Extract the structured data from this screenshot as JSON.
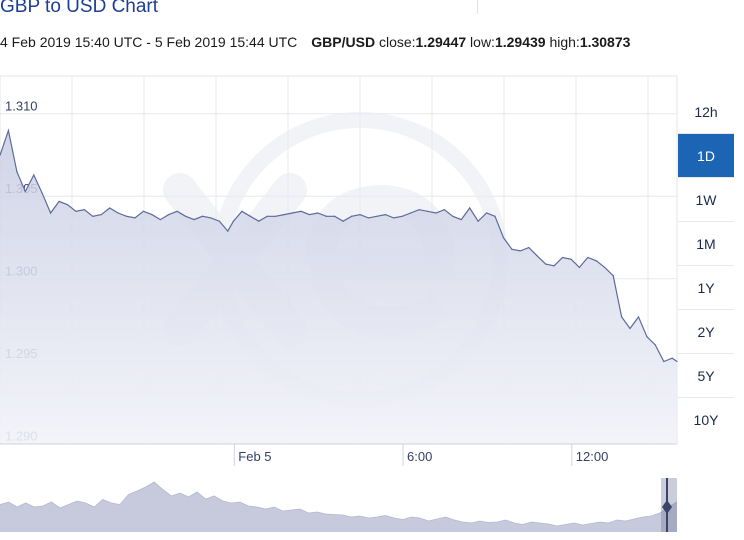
{
  "header": {
    "title": "GBP to USD Chart",
    "period": "4 Feb 2019 15:40 UTC - 5 Feb 2019 15:44 UTC",
    "pair": "GBP/USD",
    "close_label": "close:",
    "close_value": "1.29447",
    "low_label": "low:",
    "low_value": "1.29439",
    "high_label": "high:",
    "high_value": "1.30873"
  },
  "range_buttons": [
    {
      "label": "12h",
      "active": false
    },
    {
      "label": "1D",
      "active": true
    },
    {
      "label": "1W",
      "active": false
    },
    {
      "label": "1M",
      "active": false
    },
    {
      "label": "1Y",
      "active": false
    },
    {
      "label": "2Y",
      "active": false
    },
    {
      "label": "5Y",
      "active": false
    },
    {
      "label": "10Y",
      "active": false
    }
  ],
  "colors": {
    "line": "#5d6b9a",
    "area_top": "#c9cde3",
    "area_bottom": "#f2f3f9",
    "active_button": "#1c64b4",
    "title": "#1c3f94",
    "watermark": "#e8eaf2"
  },
  "chart_data": {
    "type": "area",
    "title": "GBP to USD Chart",
    "xlabel": "",
    "ylabel": "",
    "x_ticks": [
      {
        "label": "Feb 5",
        "x": 8.33
      },
      {
        "label": "6:00",
        "x": 14.33
      },
      {
        "label": "12:00",
        "x": 20.33
      }
    ],
    "y_ticks": [
      1.31,
      1.305,
      1.3,
      1.295,
      1.29
    ],
    "ylim": [
      1.2895,
      1.3118
    ],
    "xlim": [
      0,
      24.07
    ],
    "x_unit": "hours since 4 Feb 2019 15:40 UTC",
    "grid": true,
    "series": [
      {
        "name": "GBP/USD",
        "x": [
          0,
          0.3,
          0.6,
          0.9,
          1.2,
          1.5,
          1.8,
          2.1,
          2.4,
          2.7,
          3.0,
          3.3,
          3.6,
          3.9,
          4.2,
          4.5,
          4.8,
          5.1,
          5.4,
          5.7,
          6.0,
          6.3,
          6.6,
          6.9,
          7.2,
          7.5,
          7.8,
          8.1,
          8.3,
          8.6,
          8.9,
          9.2,
          9.5,
          9.8,
          10.1,
          10.4,
          10.7,
          11.0,
          11.3,
          11.6,
          11.9,
          12.2,
          12.5,
          12.8,
          13.1,
          13.4,
          13.7,
          14.0,
          14.3,
          14.6,
          14.9,
          15.2,
          15.5,
          15.8,
          16.1,
          16.4,
          16.7,
          17.0,
          17.3,
          17.6,
          17.9,
          18.2,
          18.5,
          18.8,
          19.1,
          19.4,
          19.7,
          20.0,
          20.3,
          20.6,
          20.9,
          21.2,
          21.5,
          21.8,
          22.1,
          22.4,
          22.7,
          23.0,
          23.3,
          23.6,
          23.9,
          24.07
        ],
        "values": [
          1.307,
          1.3085,
          1.306,
          1.3048,
          1.3058,
          1.3047,
          1.3035,
          1.3042,
          1.304,
          1.3036,
          1.3037,
          1.3033,
          1.3034,
          1.3038,
          1.3035,
          1.3033,
          1.3032,
          1.3036,
          1.3034,
          1.3031,
          1.3034,
          1.3036,
          1.3033,
          1.3031,
          1.3033,
          1.3032,
          1.303,
          1.3024,
          1.303,
          1.3036,
          1.3033,
          1.303,
          1.3033,
          1.3033,
          1.3034,
          1.3035,
          1.3036,
          1.3034,
          1.3035,
          1.3033,
          1.3033,
          1.303,
          1.3033,
          1.3034,
          1.3032,
          1.3033,
          1.3034,
          1.3032,
          1.3033,
          1.3035,
          1.3037,
          1.3036,
          1.3035,
          1.3037,
          1.3033,
          1.3031,
          1.3038,
          1.303,
          1.3035,
          1.3033,
          1.302,
          1.3013,
          1.3012,
          1.3014,
          1.3009,
          1.3004,
          1.3003,
          1.3008,
          1.3007,
          1.3002,
          1.3008,
          1.3006,
          1.3002,
          1.2997,
          1.2972,
          1.2965,
          1.2972,
          1.296,
          1.2955,
          1.2945,
          1.2947,
          1.2945
        ]
      }
    ],
    "navigator": {
      "values": [
        0.55,
        0.6,
        0.5,
        0.58,
        0.5,
        0.52,
        0.6,
        0.48,
        0.55,
        0.62,
        0.58,
        0.5,
        0.65,
        0.58,
        0.55,
        0.75,
        0.82,
        0.9,
        1.0,
        0.85,
        0.72,
        0.78,
        0.7,
        0.8,
        0.66,
        0.72,
        0.62,
        0.58,
        0.6,
        0.52,
        0.5,
        0.46,
        0.5,
        0.42,
        0.44,
        0.46,
        0.38,
        0.4,
        0.36,
        0.35,
        0.34,
        0.3,
        0.32,
        0.28,
        0.3,
        0.33,
        0.28,
        0.25,
        0.3,
        0.28,
        0.22,
        0.26,
        0.3,
        0.24,
        0.2,
        0.18,
        0.22,
        0.19,
        0.2,
        0.24,
        0.18,
        0.15,
        0.2,
        0.18,
        0.16,
        0.12,
        0.15,
        0.18,
        0.14,
        0.17,
        0.2,
        0.18,
        0.24,
        0.22,
        0.26,
        0.3,
        0.32,
        0.38,
        0.5,
        0.6
      ]
    }
  }
}
